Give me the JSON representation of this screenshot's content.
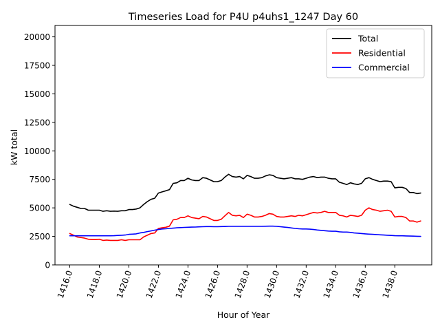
{
  "chart_data": {
    "type": "line",
    "title": "Timeseries Load for P4U p4uhs1_1247  Day 60",
    "xlabel": "Hour of Year",
    "ylabel": "kW total",
    "xlim": [
      1415.0,
      1440.5
    ],
    "ylim": [
      0,
      21000
    ],
    "xticks": [
      1416,
      1418,
      1420,
      1422,
      1424,
      1426,
      1428,
      1430,
      1432,
      1434,
      1436,
      1438
    ],
    "xtick_labels": [
      "1416.0",
      "1418.0",
      "1420.0",
      "1422.0",
      "1424.0",
      "1426.0",
      "1428.0",
      "1430.0",
      "1432.0",
      "1434.0",
      "1436.0",
      "1438.0"
    ],
    "yticks": [
      0,
      2500,
      5000,
      7500,
      10000,
      12500,
      15000,
      17500,
      20000
    ],
    "ytick_labels": [
      "0",
      "2500",
      "5000",
      "7500",
      "10000",
      "12500",
      "15000",
      "17500",
      "20000"
    ],
    "legend_position": "top-right",
    "grid": false,
    "x_start": 1416.0,
    "x_step": 0.25,
    "series": [
      {
        "name": "Total",
        "color": "#000000",
        "values": [
          5300,
          5150,
          5050,
          4950,
          4950,
          4800,
          4800,
          4800,
          4800,
          4700,
          4750,
          4700,
          4720,
          4700,
          4750,
          4750,
          4850,
          4850,
          4900,
          5000,
          5300,
          5550,
          5750,
          5850,
          6300,
          6400,
          6500,
          6600,
          7150,
          7200,
          7400,
          7400,
          7600,
          7450,
          7400,
          7400,
          7650,
          7600,
          7450,
          7300,
          7300,
          7400,
          7700,
          7950,
          7750,
          7700,
          7750,
          7550,
          7850,
          7750,
          7600,
          7600,
          7650,
          7800,
          7900,
          7850,
          7650,
          7600,
          7550,
          7600,
          7650,
          7550,
          7550,
          7500,
          7600,
          7700,
          7750,
          7650,
          7700,
          7700,
          7600,
          7550,
          7550,
          7250,
          7150,
          7050,
          7200,
          7100,
          7050,
          7150,
          7550,
          7650,
          7500,
          7400,
          7300,
          7350,
          7350,
          7300,
          6750,
          6800,
          6800,
          6700,
          6350,
          6350,
          6250,
          6300
        ]
      },
      {
        "name": "Residential",
        "color": "#ff0000",
        "values": [
          2750,
          2600,
          2450,
          2400,
          2350,
          2250,
          2220,
          2220,
          2250,
          2150,
          2180,
          2150,
          2150,
          2150,
          2200,
          2150,
          2200,
          2200,
          2200,
          2200,
          2450,
          2600,
          2750,
          2800,
          3200,
          3250,
          3300,
          3400,
          3950,
          4000,
          4150,
          4150,
          4300,
          4150,
          4100,
          4050,
          4250,
          4200,
          4050,
          3900,
          3900,
          4000,
          4300,
          4600,
          4350,
          4300,
          4350,
          4150,
          4450,
          4350,
          4200,
          4200,
          4250,
          4350,
          4500,
          4450,
          4250,
          4200,
          4200,
          4250,
          4300,
          4250,
          4350,
          4300,
          4400,
          4500,
          4600,
          4550,
          4600,
          4700,
          4600,
          4600,
          4600,
          4350,
          4300,
          4200,
          4350,
          4300,
          4250,
          4350,
          4800,
          5000,
          4850,
          4800,
          4700,
          4750,
          4800,
          4700,
          4200,
          4250,
          4250,
          4150,
          3850,
          3850,
          3750,
          3850
        ]
      },
      {
        "name": "Commercial",
        "color": "#0000ff",
        "values": [
          2550,
          2550,
          2550,
          2550,
          2550,
          2550,
          2550,
          2550,
          2550,
          2550,
          2550,
          2550,
          2560,
          2580,
          2600,
          2620,
          2680,
          2700,
          2720,
          2800,
          2850,
          2920,
          2980,
          3050,
          3100,
          3150,
          3170,
          3200,
          3220,
          3250,
          3270,
          3290,
          3300,
          3310,
          3320,
          3340,
          3350,
          3360,
          3360,
          3350,
          3350,
          3360,
          3370,
          3380,
          3380,
          3380,
          3380,
          3380,
          3380,
          3380,
          3380,
          3380,
          3380,
          3390,
          3400,
          3400,
          3380,
          3350,
          3310,
          3280,
          3240,
          3200,
          3170,
          3150,
          3150,
          3130,
          3100,
          3060,
          3030,
          3000,
          2970,
          2950,
          2950,
          2900,
          2880,
          2880,
          2850,
          2800,
          2780,
          2750,
          2720,
          2700,
          2680,
          2660,
          2640,
          2620,
          2600,
          2580,
          2560,
          2550,
          2550,
          2540,
          2530,
          2520,
          2510,
          2500
        ]
      }
    ]
  }
}
